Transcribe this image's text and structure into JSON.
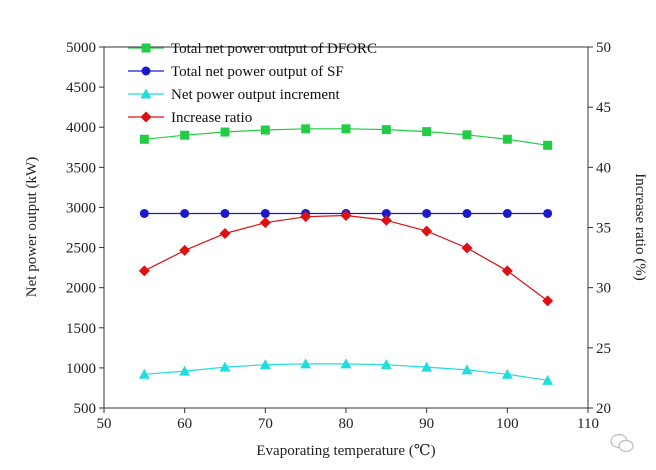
{
  "chart_data": {
    "type": "line",
    "xlabel": "Evaporating temperature (℃)",
    "ylabel_left": "Net power output (kW)",
    "ylabel_right": "Increase ratio (%)",
    "xlim": [
      50,
      110
    ],
    "xticks": [
      50,
      60,
      70,
      80,
      90,
      100,
      110
    ],
    "ylim_left": [
      500,
      5000
    ],
    "yticks_left": [
      500,
      1000,
      1500,
      2000,
      2500,
      3000,
      3500,
      4000,
      4500,
      5000
    ],
    "ylim_right": [
      20,
      50
    ],
    "yticks_right": [
      20,
      25,
      30,
      35,
      40,
      45,
      50
    ],
    "grid": false,
    "legend_position": "top-left",
    "x": [
      55,
      60,
      65,
      70,
      75,
      80,
      85,
      90,
      95,
      100,
      105
    ],
    "series": [
      {
        "name": "Total net power output of DFORC",
        "axis": "left",
        "color": "#22cc44",
        "marker": "square",
        "values": [
          3850,
          3900,
          3940,
          3965,
          3980,
          3980,
          3970,
          3945,
          3905,
          3850,
          3775
        ]
      },
      {
        "name": "Total net power output of SF",
        "axis": "left",
        "color": "#1a1acc",
        "marker": "circle",
        "values": [
          2925,
          2925,
          2925,
          2925,
          2925,
          2925,
          2925,
          2925,
          2925,
          2925,
          2925
        ]
      },
      {
        "name": "Net power output increment",
        "axis": "left",
        "color": "#22dddd",
        "marker": "triangle",
        "values": [
          920,
          960,
          1010,
          1040,
          1050,
          1050,
          1040,
          1010,
          975,
          920,
          845
        ]
      },
      {
        "name": "Increase ratio",
        "axis": "right",
        "color": "#dd1111",
        "marker": "diamond",
        "values": [
          31.4,
          33.1,
          34.5,
          35.4,
          35.9,
          36.0,
          35.6,
          34.7,
          33.3,
          31.4,
          28.9
        ]
      }
    ]
  }
}
